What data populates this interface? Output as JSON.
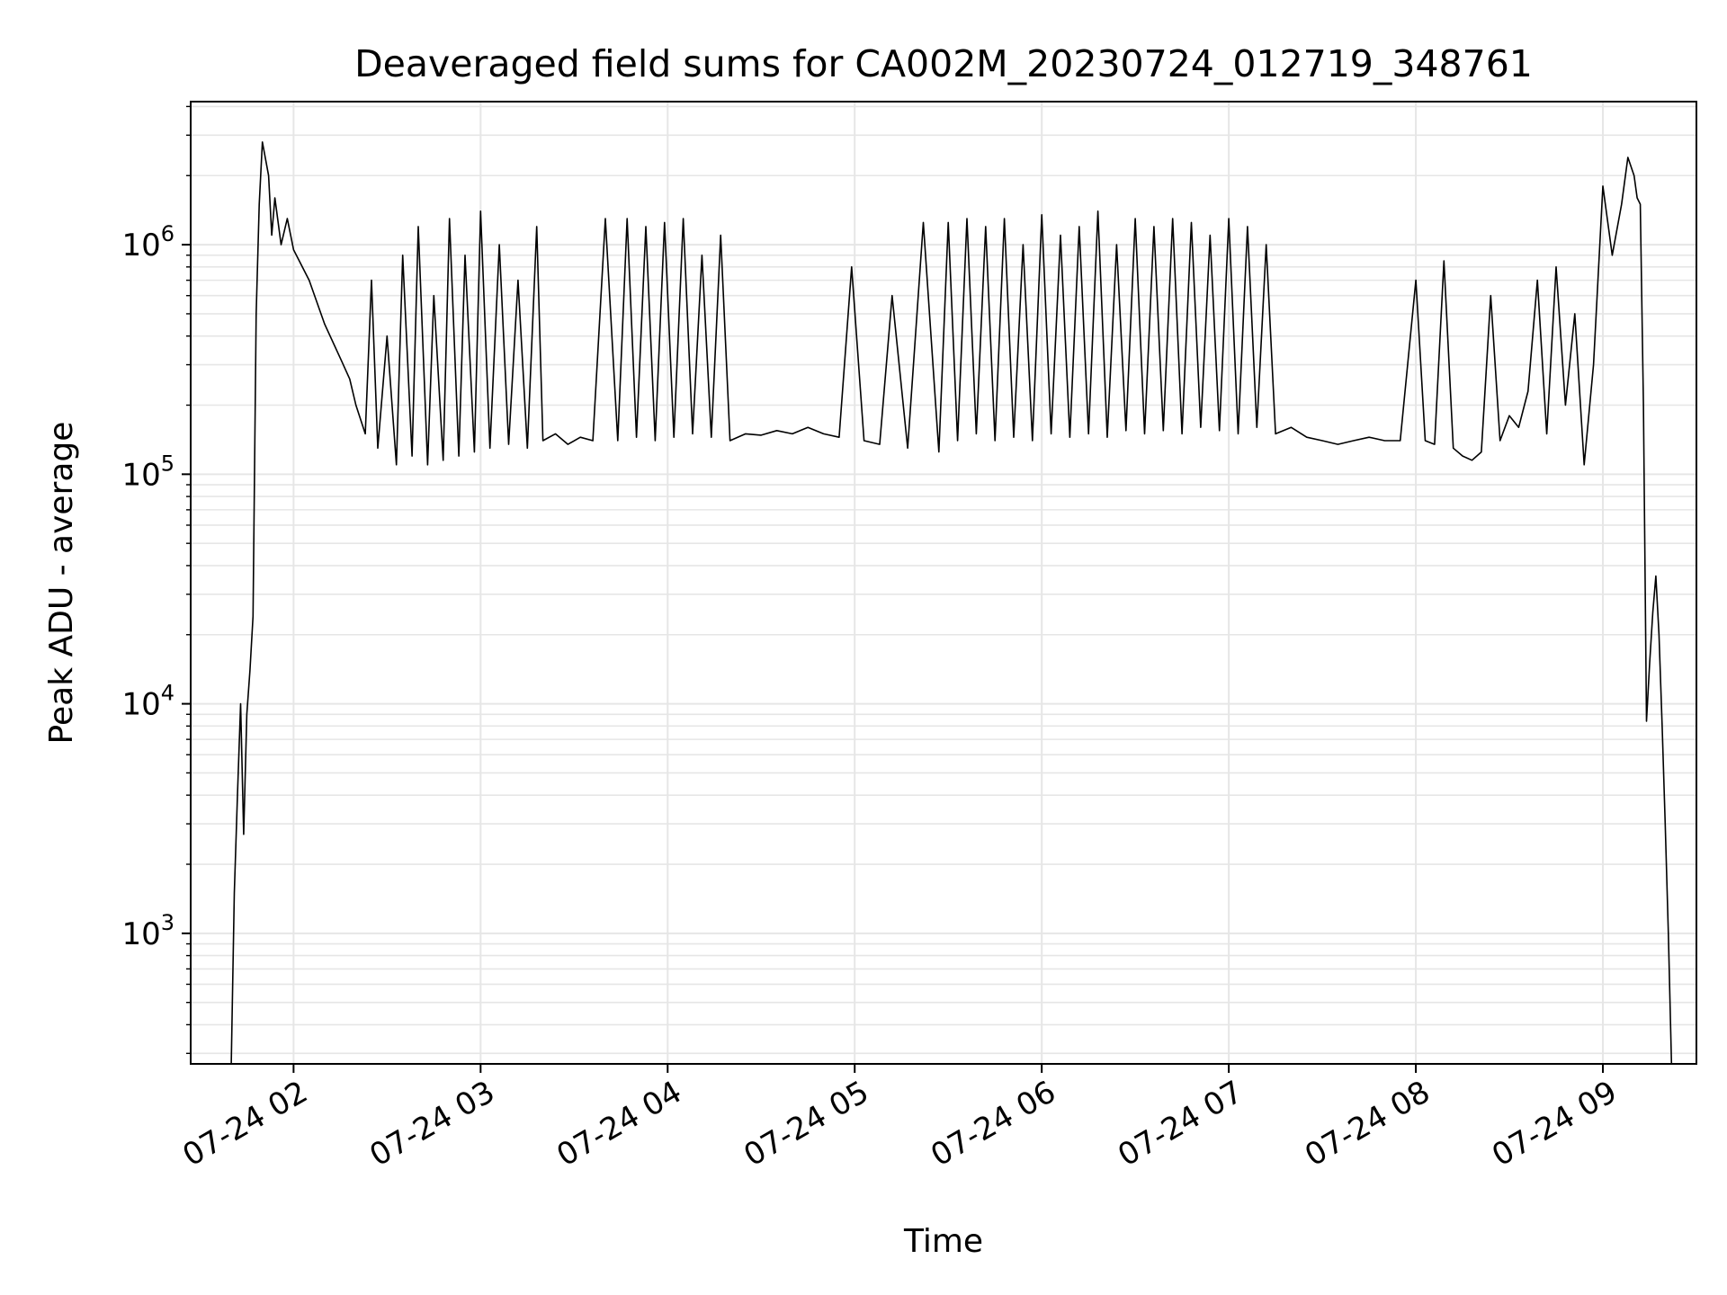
{
  "chart_data": {
    "type": "line",
    "title": "Deaveraged field sums for CA002M_20230724_012719_348761",
    "xlabel": "Time",
    "ylabel": "Peak ADU - average",
    "yscale": "log",
    "grid": true,
    "line_color": "#000000",
    "grid_color": "#e6e6e6",
    "xlim": [
      "2023-07-24T01:27",
      "2023-07-24T09:30"
    ],
    "ylim": [
      270,
      4200000
    ],
    "x_ticks": [
      {
        "label": "07-24 02",
        "value": "2023-07-24T02:00"
      },
      {
        "label": "07-24 03",
        "value": "2023-07-24T03:00"
      },
      {
        "label": "07-24 04",
        "value": "2023-07-24T04:00"
      },
      {
        "label": "07-24 05",
        "value": "2023-07-24T05:00"
      },
      {
        "label": "07-24 06",
        "value": "2023-07-24T06:00"
      },
      {
        "label": "07-24 07",
        "value": "2023-07-24T07:00"
      },
      {
        "label": "07-24 08",
        "value": "2023-07-24T08:00"
      },
      {
        "label": "07-24 09",
        "value": "2023-07-24T09:00"
      }
    ],
    "y_ticks": [
      {
        "base": "10",
        "exp": "3",
        "value": 1000
      },
      {
        "base": "10",
        "exp": "4",
        "value": 10000
      },
      {
        "base": "10",
        "exp": "5",
        "value": 100000
      },
      {
        "base": "10",
        "exp": "6",
        "value": 1000000
      }
    ],
    "series": [
      {
        "x": [
          "2023-07-24T01:40",
          "2023-07-24T01:41",
          "2023-07-24T01:42",
          "2023-07-24T01:43",
          "2023-07-24T01:44",
          "2023-07-24T01:45",
          "2023-07-24T01:46",
          "2023-07-24T01:47",
          "2023-07-24T01:48",
          "2023-07-24T01:49",
          "2023-07-24T01:50",
          "2023-07-24T01:52",
          "2023-07-24T01:53",
          "2023-07-24T01:54",
          "2023-07-24T01:56",
          "2023-07-24T01:58",
          "2023-07-24T02:00",
          "2023-07-24T02:05",
          "2023-07-24T02:10",
          "2023-07-24T02:15",
          "2023-07-24T02:18",
          "2023-07-24T02:20",
          "2023-07-24T02:23",
          "2023-07-24T02:25",
          "2023-07-24T02:27",
          "2023-07-24T02:30",
          "2023-07-24T02:33",
          "2023-07-24T02:35",
          "2023-07-24T02:38",
          "2023-07-24T02:40",
          "2023-07-24T02:43",
          "2023-07-24T02:45",
          "2023-07-24T02:48",
          "2023-07-24T02:50",
          "2023-07-24T02:53",
          "2023-07-24T02:55",
          "2023-07-24T02:58",
          "2023-07-24T03:00",
          "2023-07-24T03:03",
          "2023-07-24T03:06",
          "2023-07-24T03:09",
          "2023-07-24T03:12",
          "2023-07-24T03:15",
          "2023-07-24T03:18",
          "2023-07-24T03:20",
          "2023-07-24T03:24",
          "2023-07-24T03:28",
          "2023-07-24T03:32",
          "2023-07-24T03:36",
          "2023-07-24T03:40",
          "2023-07-24T03:44",
          "2023-07-24T03:47",
          "2023-07-24T03:50",
          "2023-07-24T03:53",
          "2023-07-24T03:56",
          "2023-07-24T03:59",
          "2023-07-24T04:02",
          "2023-07-24T04:05",
          "2023-07-24T04:08",
          "2023-07-24T04:11",
          "2023-07-24T04:14",
          "2023-07-24T04:17",
          "2023-07-24T04:20",
          "2023-07-24T04:25",
          "2023-07-24T04:30",
          "2023-07-24T04:35",
          "2023-07-24T04:40",
          "2023-07-24T04:45",
          "2023-07-24T04:50",
          "2023-07-24T04:55",
          "2023-07-24T04:59",
          "2023-07-24T05:03",
          "2023-07-24T05:08",
          "2023-07-24T05:12",
          "2023-07-24T05:17",
          "2023-07-24T05:22",
          "2023-07-24T05:27",
          "2023-07-24T05:30",
          "2023-07-24T05:33",
          "2023-07-24T05:36",
          "2023-07-24T05:39",
          "2023-07-24T05:42",
          "2023-07-24T05:45",
          "2023-07-24T05:48",
          "2023-07-24T05:51",
          "2023-07-24T05:54",
          "2023-07-24T05:57",
          "2023-07-24T06:00",
          "2023-07-24T06:03",
          "2023-07-24T06:06",
          "2023-07-24T06:09",
          "2023-07-24T06:12",
          "2023-07-24T06:15",
          "2023-07-24T06:18",
          "2023-07-24T06:21",
          "2023-07-24T06:24",
          "2023-07-24T06:27",
          "2023-07-24T06:30",
          "2023-07-24T06:33",
          "2023-07-24T06:36",
          "2023-07-24T06:39",
          "2023-07-24T06:42",
          "2023-07-24T06:45",
          "2023-07-24T06:48",
          "2023-07-24T06:51",
          "2023-07-24T06:54",
          "2023-07-24T06:57",
          "2023-07-24T07:00",
          "2023-07-24T07:03",
          "2023-07-24T07:06",
          "2023-07-24T07:09",
          "2023-07-24T07:12",
          "2023-07-24T07:15",
          "2023-07-24T07:20",
          "2023-07-24T07:25",
          "2023-07-24T07:30",
          "2023-07-24T07:35",
          "2023-07-24T07:40",
          "2023-07-24T07:45",
          "2023-07-24T07:50",
          "2023-07-24T07:55",
          "2023-07-24T08:00",
          "2023-07-24T08:03",
          "2023-07-24T08:06",
          "2023-07-24T08:09",
          "2023-07-24T08:12",
          "2023-07-24T08:15",
          "2023-07-24T08:18",
          "2023-07-24T08:21",
          "2023-07-24T08:24",
          "2023-07-24T08:27",
          "2023-07-24T08:30",
          "2023-07-24T08:33",
          "2023-07-24T08:36",
          "2023-07-24T08:39",
          "2023-07-24T08:42",
          "2023-07-24T08:45",
          "2023-07-24T08:48",
          "2023-07-24T08:51",
          "2023-07-24T08:54",
          "2023-07-24T08:57",
          "2023-07-24T09:00",
          "2023-07-24T09:03",
          "2023-07-24T09:06",
          "2023-07-24T09:08",
          "2023-07-24T09:10",
          "2023-07-24T09:11",
          "2023-07-24T09:12",
          "2023-07-24T09:13",
          "2023-07-24T09:14",
          "2023-07-24T09:15",
          "2023-07-24T09:16",
          "2023-07-24T09:17",
          "2023-07-24T09:18",
          "2023-07-24T09:19",
          "2023-07-24T09:20",
          "2023-07-24T09:21",
          "2023-07-24T09:22"
        ],
        "y": [
          270,
          1500,
          4000,
          10000,
          2700,
          9000,
          14000,
          24000,
          500000,
          1500000,
          2800000,
          2000000,
          1100000,
          1600000,
          1000000,
          1300000,
          950000,
          700000,
          450000,
          320000,
          260000,
          200000,
          150000,
          700000,
          130000,
          400000,
          110000,
          900000,
          120000,
          1200000,
          110000,
          600000,
          115000,
          1300000,
          120000,
          900000,
          125000,
          1400000,
          130000,
          1000000,
          135000,
          700000,
          130000,
          1200000,
          140000,
          150000,
          135000,
          145000,
          140000,
          1300000,
          140000,
          1300000,
          145000,
          1200000,
          140000,
          1250000,
          145000,
          1300000,
          150000,
          900000,
          145000,
          1100000,
          140000,
          150000,
          148000,
          155000,
          150000,
          160000,
          150000,
          145000,
          800000,
          140000,
          135000,
          600000,
          130000,
          1250000,
          125000,
          1250000,
          140000,
          1300000,
          150000,
          1200000,
          140000,
          1300000,
          145000,
          1000000,
          140000,
          1350000,
          150000,
          1100000,
          145000,
          1200000,
          150000,
          1400000,
          145000,
          1000000,
          155000,
          1300000,
          150000,
          1200000,
          155000,
          1300000,
          150000,
          1250000,
          160000,
          1100000,
          155000,
          1300000,
          150000,
          1200000,
          160000,
          1000000,
          150000,
          160000,
          145000,
          140000,
          135000,
          140000,
          145000,
          140000,
          140000,
          700000,
          140000,
          135000,
          850000,
          130000,
          120000,
          115000,
          125000,
          600000,
          140000,
          180000,
          160000,
          230000,
          700000,
          150000,
          800000,
          200000,
          500000,
          110000,
          300000,
          1800000,
          900000,
          1500000,
          2400000,
          2000000,
          1600000,
          1500000,
          200000,
          8400,
          15000,
          25000,
          36000,
          20000,
          8000,
          3000,
          1000,
          270
        ]
      }
    ]
  }
}
